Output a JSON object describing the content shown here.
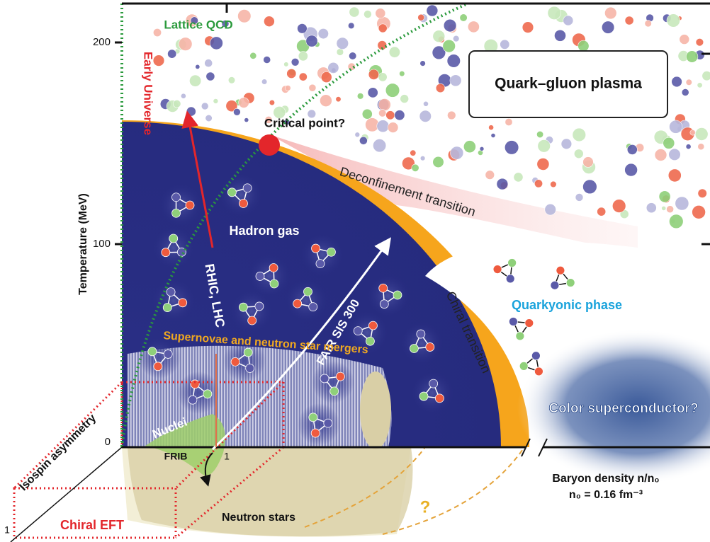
{
  "axes": {
    "y_label": "Temperature (MeV)",
    "y_ticks": [
      "200",
      "100",
      "0"
    ],
    "x_label": "Baryon density n/n₀",
    "x_note": "n₀ = 0.16 fm⁻³",
    "x_one": "1",
    "z_one": "1"
  },
  "phases": {
    "qgp": "Quark–gluon plasma",
    "hadron": "Hadron gas",
    "quarkyonic": "Quarkyonic phase",
    "color_sc": "Color superconductor?",
    "neutron_stars": "Neutron stars",
    "nuclei": "Nuclei"
  },
  "transitions": {
    "deconfinement": "Deconfinement transition",
    "chiral": "Chiral transition",
    "critical": "Critical point?",
    "unknown": "?"
  },
  "methods": {
    "lattice": "Lattice QCD",
    "early_universe": "Early Universe",
    "rhic_lhc": "RHIC, LHC",
    "fair": "FAIR SIS 300",
    "frib": "FRIB",
    "supernovae": "Supernovae and neutron star mergers",
    "chiral_eft": "Chiral EFT",
    "isospin": "Isospin asymmetry"
  }
}
